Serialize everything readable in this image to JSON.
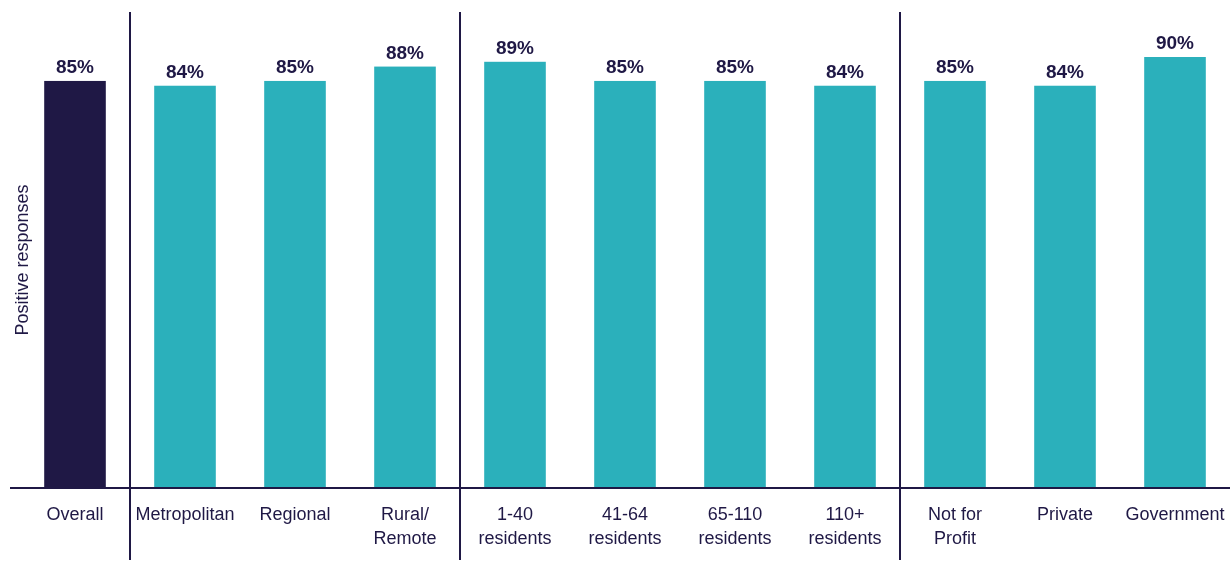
{
  "chart_data": {
    "type": "bar",
    "ylabel": "Positive responses",
    "categories": [
      "Overall",
      "Metropolitan",
      "Regional",
      "Rural/ Remote",
      "1-40 residents",
      "41-64 residents",
      "65-110 residents",
      "110+ residents",
      "Not for Profit",
      "Private",
      "Government"
    ],
    "values": [
      85,
      84,
      85,
      88,
      89,
      85,
      85,
      84,
      85,
      84,
      90
    ],
    "colors": [
      "#1f1845",
      "#2bb0bb",
      "#2bb0bb",
      "#2bb0bb",
      "#2bb0bb",
      "#2bb0bb",
      "#2bb0bb",
      "#2bb0bb",
      "#2bb0bb",
      "#2bb0bb",
      "#2bb0bb"
    ],
    "value_labels": [
      "85%",
      "84%",
      "85%",
      "88%",
      "89%",
      "85%",
      "85%",
      "84%",
      "85%",
      "84%",
      "90%"
    ]
  }
}
